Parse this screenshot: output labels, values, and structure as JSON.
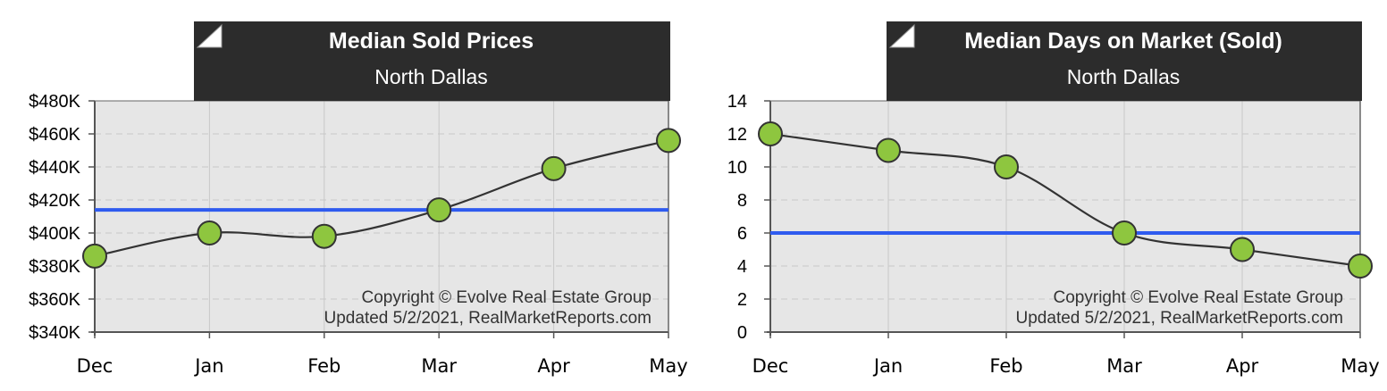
{
  "colors": {
    "title_bg": "#2c2c2c",
    "plot_bg": "#e6e6e6",
    "average_line": "#2f5bef",
    "trend_line": "#333333",
    "point_fill": "#8ec63f",
    "point_stroke": "#333333",
    "grid": "#c8c8c8"
  },
  "chart_data": [
    {
      "type": "line",
      "title": "Median Sold Prices",
      "subtitle": "North Dallas",
      "categories": [
        "Dec",
        "Jan",
        "Feb",
        "Mar",
        "Apr",
        "May"
      ],
      "series": [
        {
          "values": [
            386000,
            400000,
            398000,
            414000,
            439000,
            456000
          ]
        }
      ],
      "average": 414000,
      "ylim": [
        340000,
        480000
      ],
      "yticks": [
        340000,
        360000,
        380000,
        400000,
        420000,
        440000,
        460000,
        480000
      ],
      "ytick_labels": [
        "$340K",
        "$360K",
        "$380K",
        "$400K",
        "$420K",
        "$440K",
        "$460K",
        "$480K"
      ],
      "grid": true,
      "copyright": "Copyright © Evolve Real Estate Group",
      "updated": "Updated 5/2/2021, RealMarketReports.com"
    },
    {
      "type": "line",
      "title": "Median Days on Market (Sold)",
      "subtitle": "North Dallas",
      "categories": [
        "Dec",
        "Jan",
        "Feb",
        "Mar",
        "Apr",
        "May"
      ],
      "series": [
        {
          "values": [
            12,
            11,
            10,
            6,
            5,
            4
          ]
        }
      ],
      "average": 6,
      "ylim": [
        0,
        14
      ],
      "yticks": [
        0,
        2,
        4,
        6,
        8,
        10,
        12,
        14
      ],
      "ytick_labels": [
        "0",
        "2",
        "4",
        "6",
        "8",
        "10",
        "12",
        "14"
      ],
      "grid": true,
      "copyright": "Copyright © Evolve Real Estate Group",
      "updated": "Updated 5/2/2021, RealMarketReports.com"
    }
  ]
}
